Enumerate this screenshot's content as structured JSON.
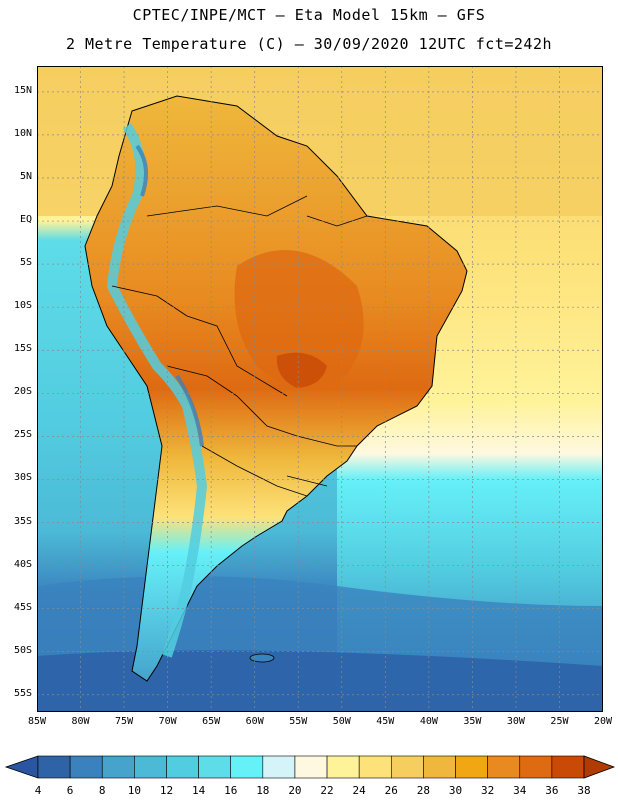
{
  "title": {
    "line1": "CPTEC/INPE/MCT –  Eta Model 15km – GFS",
    "line2": "2 Metre Temperature (C) – 30/09/2020 12UTC fct=242h"
  },
  "map": {
    "lat_labels": [
      "15N",
      "10N",
      "5N",
      "EQ",
      "5S",
      "10S",
      "15S",
      "20S",
      "25S",
      "30S",
      "35S",
      "40S",
      "45S",
      "50S",
      "55S"
    ],
    "lon_labels": [
      "85W",
      "80W",
      "75W",
      "70W",
      "65W",
      "60W",
      "55W",
      "50W",
      "45W",
      "40W",
      "35W",
      "30W",
      "25W",
      "20W"
    ],
    "extent": {
      "lon_min": -85,
      "lon_max": -20,
      "lat_min": -57,
      "lat_max": 18
    },
    "ocean_regions": [
      {
        "name": "caribbean-warm",
        "temp": 28
      },
      {
        "name": "equatorial-atlantic",
        "temp": 27
      },
      {
        "name": "south-atlantic-subtropical",
        "temp": 22
      },
      {
        "name": "eastern-pacific",
        "temp": 16
      },
      {
        "name": "southern-ocean",
        "temp": 6
      }
    ]
  },
  "colorbar": {
    "ticks": [
      "4",
      "6",
      "8",
      "10",
      "12",
      "14",
      "16",
      "18",
      "20",
      "22",
      "24",
      "26",
      "28",
      "30",
      "32",
      "34",
      "36",
      "38"
    ],
    "colors": [
      "#2e63a8",
      "#3a82be",
      "#45a3cc",
      "#4cbad6",
      "#52cce0",
      "#5edce8",
      "#66f0f8",
      "#d4f4fa",
      "#fff8e0",
      "#fff39a",
      "#fde27a",
      "#f6ce60",
      "#efb83c",
      "#f1a614",
      "#e88a20",
      "#de6a12",
      "#c84a06"
    ],
    "low_color": "#2a55a0",
    "high_color": "#b03c04"
  }
}
